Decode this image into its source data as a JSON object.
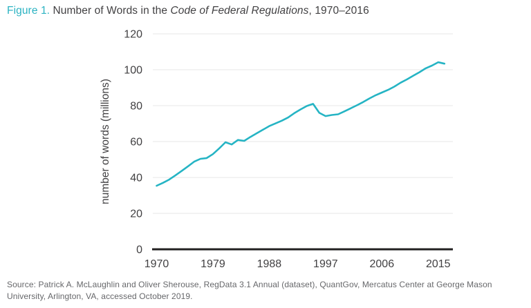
{
  "title": {
    "figure_label": "Figure 1.",
    "text_before_italic": " Number of Words in the ",
    "italic_text": "Code of Federal Regulations",
    "text_after_italic": ", 1970–2016"
  },
  "source": {
    "text": "Source: Patrick A. McLaughlin and Oliver Sherouse, RegData 3.1 Annual (dataset), QuantGov, Mercatus Center at George Mason University, Arlington, VA, accessed October 2019."
  },
  "colors": {
    "accent_teal": "#25b4c4",
    "figure_label_teal": "#2bb3c2",
    "text_dark": "#414042",
    "source_gray": "#66676a",
    "gridline_gray": "#e7e7e7",
    "axis_black": "#222021"
  },
  "chart_data": {
    "type": "line",
    "title": "Number of Words in the Code of Federal Regulations, 1970–2016",
    "xlabel": "",
    "ylabel": "number of words (millions)",
    "x": [
      1970,
      1971,
      1972,
      1973,
      1974,
      1975,
      1976,
      1977,
      1978,
      1979,
      1980,
      1981,
      1982,
      1983,
      1984,
      1985,
      1986,
      1987,
      1988,
      1989,
      1990,
      1991,
      1992,
      1993,
      1994,
      1995,
      1996,
      1997,
      1998,
      1999,
      2000,
      2001,
      2002,
      2003,
      2004,
      2005,
      2006,
      2007,
      2008,
      2009,
      2010,
      2011,
      2012,
      2013,
      2014,
      2015,
      2016
    ],
    "series": [
      {
        "name": "Number of words in the CFR (millions)",
        "values": [
          35.4,
          37.0,
          38.8,
          41.2,
          43.6,
          46.2,
          48.8,
          50.4,
          50.8,
          53.0,
          56.2,
          59.6,
          58.4,
          60.9,
          60.4,
          62.6,
          64.6,
          66.6,
          68.6,
          70.1,
          71.6,
          73.4,
          75.8,
          77.9,
          79.8,
          81.0,
          76.0,
          74.2,
          74.8,
          75.2,
          76.8,
          78.5,
          80.2,
          82.0,
          84.0,
          85.8,
          87.3,
          88.8,
          90.6,
          92.8,
          94.6,
          96.6,
          98.6,
          100.8,
          102.3,
          104.2,
          103.4
        ]
      }
    ],
    "ylim": [
      0,
      120
    ],
    "yticks": [
      0,
      20,
      40,
      60,
      80,
      100,
      120
    ],
    "xticks": [
      1970,
      1979,
      1988,
      1997,
      2006,
      2015
    ],
    "grid": "horizontal",
    "legend": "none",
    "line_color": "#25b4c4"
  }
}
